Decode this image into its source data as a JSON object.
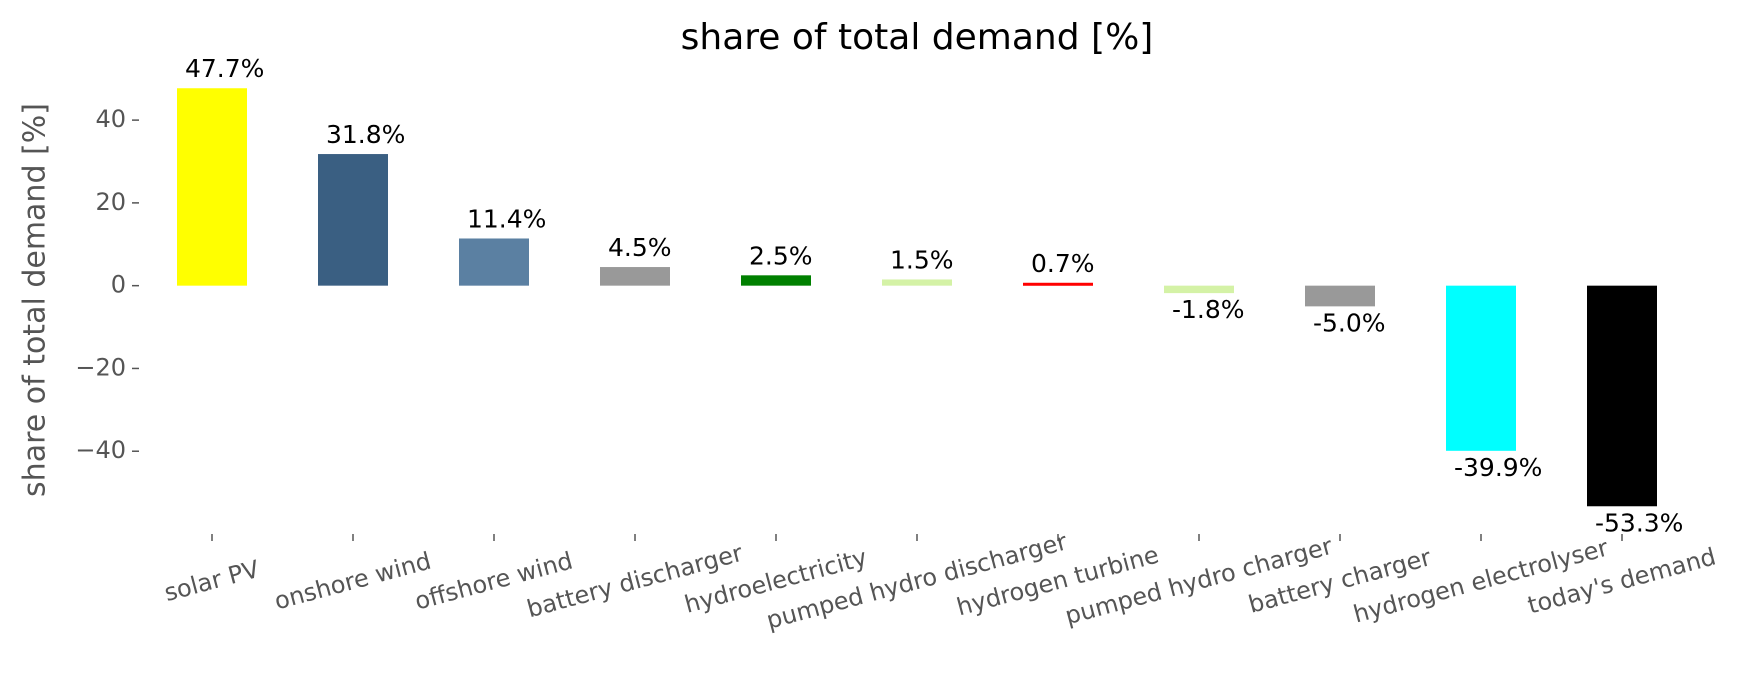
{
  "chart_data": {
    "type": "bar",
    "title": "share of total demand [%]",
    "ylabel": "share of total demand [%]",
    "categories": [
      "solar PV",
      "onshore wind",
      "offshore wind",
      "battery discharger",
      "hydroelectricity",
      "pumped hydro discharger",
      "hydrogen turbine",
      "pumped hydro charger",
      "battery charger",
      "hydrogen electrolyser",
      "today's demand"
    ],
    "values": [
      47.7,
      31.8,
      11.4,
      4.5,
      2.5,
      1.5,
      0.7,
      -1.8,
      -5.0,
      -39.9,
      -53.3
    ],
    "value_labels": [
      "47.7%",
      "31.8%",
      "11.4%",
      "4.5%",
      "2.5%",
      "1.5%",
      "0.7%",
      "-1.8%",
      "-5.0%",
      "-39.9%",
      "-53.3%"
    ],
    "colors": [
      "#ffff00",
      "#3a5f82",
      "#5b80a2",
      "#999999",
      "#008000",
      "#d4f2a6",
      "#ff0000",
      "#d4f2a6",
      "#999999",
      "#00ffff",
      "#000000"
    ],
    "ylim": [
      -60,
      48
    ],
    "yticks": [
      {
        "value": -40,
        "label": "−40"
      },
      {
        "value": -20,
        "label": "−20"
      },
      0,
      20,
      40
    ]
  }
}
